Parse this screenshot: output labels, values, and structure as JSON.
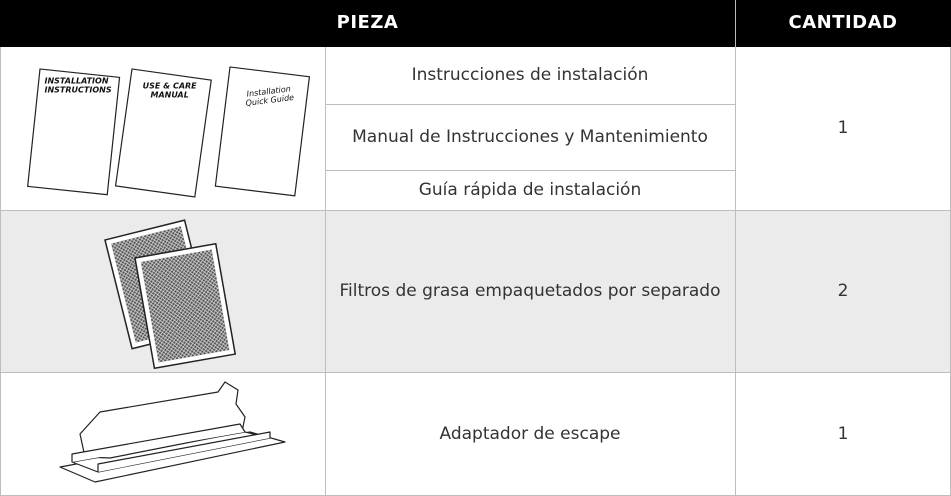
{
  "table": {
    "headers": [
      "PIEZA",
      "CANTIDAD"
    ],
    "rows": [
      {
        "booklets": [
          [
            "INSTALLATION",
            "INSTRUCTIONS"
          ],
          [
            "USE & CARE",
            "MANUAL"
          ],
          [
            "Installation",
            "Quick Guide"
          ]
        ],
        "parts": [
          "Instrucciones de instalación",
          "Manual de Instrucciones y Mantenimiento",
          "Guía rápida de instalación"
        ],
        "quantity": 1
      },
      {
        "parts": [
          "Filtros de grasa empaquetados por separado"
        ],
        "quantity": 2
      },
      {
        "parts": [
          "Adaptador de escape"
        ],
        "quantity": 1
      }
    ]
  }
}
